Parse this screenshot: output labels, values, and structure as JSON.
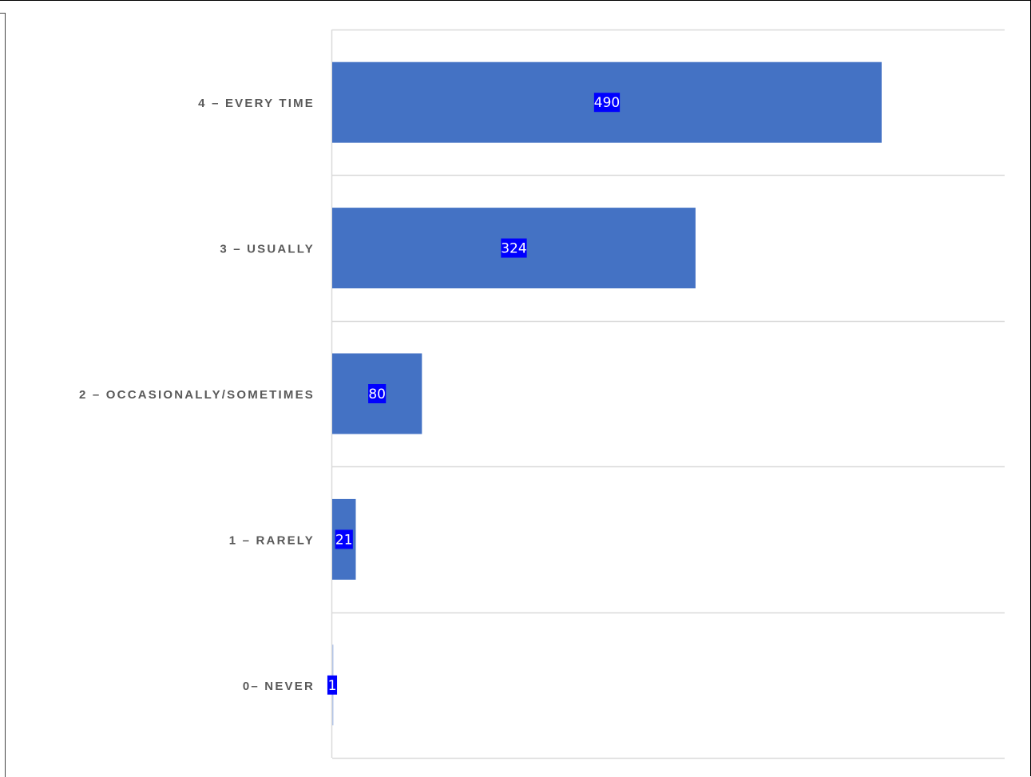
{
  "chart_data": {
    "type": "bar",
    "orientation": "horizontal",
    "categories": [
      "4 – EVERY TIME",
      "3 – USUALLY",
      "2 – OCCASIONALLY/SOMETIMES",
      "1 – RARELY",
      "0– NEVER"
    ],
    "values": [
      490,
      324,
      80,
      21,
      1
    ],
    "xlim": [
      0,
      600
    ],
    "grid": true,
    "legend": "none",
    "bar_color": "#4472C4",
    "label_bg_color": "#0000FF",
    "label_text_color": "#FFFFFF",
    "category_text_color": "#595959",
    "gridline_color": "#D9D9D9"
  }
}
